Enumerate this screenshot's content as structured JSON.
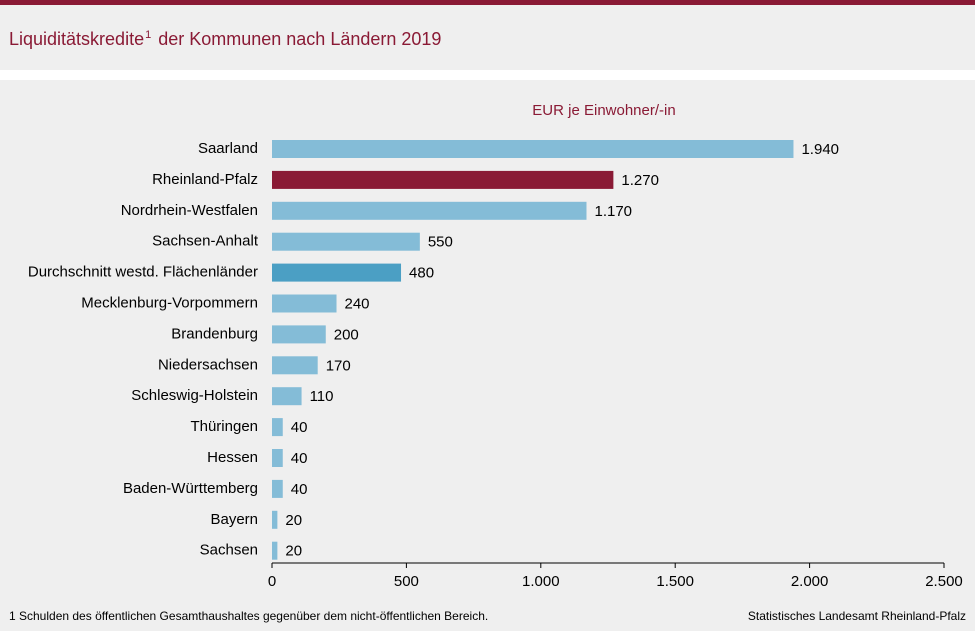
{
  "colors": {
    "accent": "#8a1a35",
    "bar_default": "#84bcd7",
    "bar_average": "#4b9fc4",
    "bar_highlight": "#8a1a35"
  },
  "header": {
    "title_main": "Liquiditätskredite",
    "title_sup": "1",
    "title_rest": " der Kommunen nach Ländern 2019"
  },
  "footer": {
    "footnote": "1 Schulden des öffentlichen  Gesamthaushaltes gegenüber  dem nicht-öffentlichen  Bereich.",
    "source": "Statistisches Landesamt Rheinland-Pfalz"
  },
  "chart_data": {
    "type": "bar",
    "orientation": "horizontal",
    "unit_label": "EUR je Einwohner/-in",
    "categories": [
      "Saarland",
      "Rheinland-Pfalz",
      "Nordrhein-Westfalen",
      "Sachsen-Anhalt",
      "Durchschnitt westd. Flächenländer",
      "Mecklenburg-Vorpommern",
      "Brandenburg",
      "Niedersachsen",
      "Schleswig-Holstein",
      "Thüringen",
      "Hessen",
      "Baden-Württemberg",
      "Bayern",
      "Sachsen"
    ],
    "values": [
      1940,
      1270,
      1170,
      550,
      480,
      240,
      200,
      170,
      110,
      40,
      40,
      40,
      20,
      20
    ],
    "value_labels": [
      "1.940",
      "1.270",
      "1.170",
      "550",
      "480",
      "240",
      "200",
      "170",
      "110",
      "40",
      "40",
      "40",
      "20",
      "20"
    ],
    "highlight": [
      "default",
      "highlight",
      "default",
      "default",
      "average",
      "default",
      "default",
      "default",
      "default",
      "default",
      "default",
      "default",
      "default",
      "default"
    ],
    "xlim": [
      0,
      2500
    ],
    "xticks": [
      0,
      500,
      1000,
      1500,
      2000,
      2500
    ],
    "xtick_labels": [
      "0",
      "500",
      "1.000",
      "1.500",
      "2.000",
      "2.500"
    ],
    "grid": false,
    "legend": "none"
  }
}
